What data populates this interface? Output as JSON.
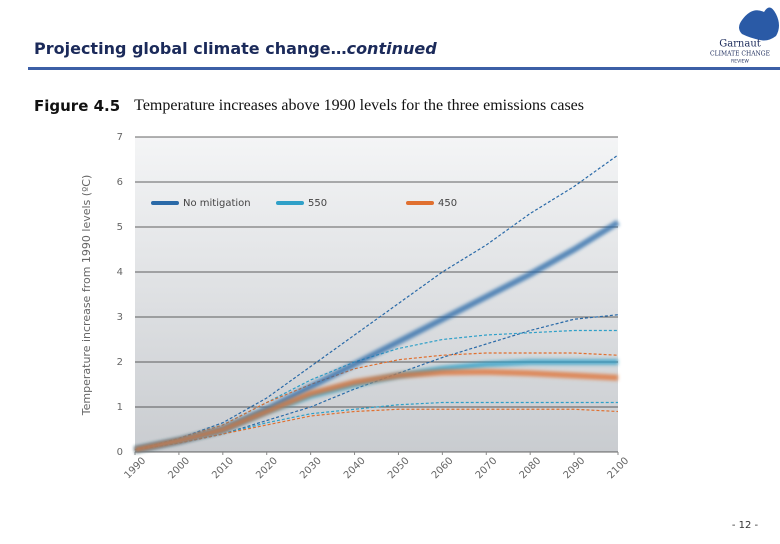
{
  "header": {
    "title": "Projecting global climate change…",
    "title_suffix": "continued",
    "logo_name": "Garnaut",
    "logo_line1": "CLIMATE CHANGE",
    "logo_line2": "REVIEW"
  },
  "figure": {
    "number": "Figure 4.5",
    "caption": "Temperature increases above 1990 levels for the three emissions cases"
  },
  "page_number": "- 12 -",
  "chart_data": {
    "type": "line",
    "y_label": "Temperature increase from 1990 levels (ºC)",
    "x": [
      1990,
      2000,
      2010,
      2020,
      2030,
      2040,
      2050,
      2060,
      2070,
      2080,
      2090,
      2100
    ],
    "xlim": [
      1990,
      2100
    ],
    "xticks": [
      1990,
      2000,
      2010,
      2020,
      2030,
      2040,
      2050,
      2060,
      2070,
      2080,
      2090,
      2100
    ],
    "ylim": [
      0,
      7
    ],
    "yticks": [
      0,
      1,
      2,
      3,
      4,
      5,
      6,
      7
    ],
    "grid": true,
    "legend": "top-left",
    "series": [
      {
        "name": "No mitigation",
        "color": "#2a6aa8",
        "values": [
          0.05,
          0.25,
          0.5,
          0.95,
          1.45,
          1.95,
          2.45,
          2.95,
          3.45,
          3.95,
          4.5,
          5.1
        ],
        "high": [
          0.05,
          0.3,
          0.65,
          1.2,
          1.9,
          2.6,
          3.3,
          4.0,
          4.6,
          5.3,
          5.9,
          6.6
        ],
        "low": [
          0.05,
          0.2,
          0.4,
          0.7,
          1.0,
          1.4,
          1.75,
          2.1,
          2.4,
          2.7,
          2.95,
          3.05
        ]
      },
      {
        "name": "550",
        "color": "#2fa0c8",
        "values": [
          0.05,
          0.25,
          0.5,
          0.9,
          1.25,
          1.5,
          1.7,
          1.85,
          1.95,
          2.0,
          2.0,
          2.0
        ],
        "high": [
          0.05,
          0.3,
          0.6,
          1.1,
          1.6,
          2.0,
          2.3,
          2.5,
          2.6,
          2.65,
          2.7,
          2.7
        ],
        "low": [
          0.05,
          0.2,
          0.4,
          0.65,
          0.85,
          0.95,
          1.05,
          1.1,
          1.1,
          1.1,
          1.1,
          1.1
        ]
      },
      {
        "name": "450",
        "color": "#e07030",
        "values": [
          0.05,
          0.25,
          0.5,
          0.9,
          1.3,
          1.55,
          1.7,
          1.77,
          1.78,
          1.75,
          1.7,
          1.65
        ],
        "high": [
          0.05,
          0.3,
          0.6,
          1.1,
          1.5,
          1.85,
          2.05,
          2.15,
          2.2,
          2.2,
          2.2,
          2.15
        ],
        "low": [
          0.05,
          0.2,
          0.4,
          0.6,
          0.8,
          0.9,
          0.95,
          0.95,
          0.95,
          0.95,
          0.95,
          0.9
        ]
      }
    ]
  }
}
